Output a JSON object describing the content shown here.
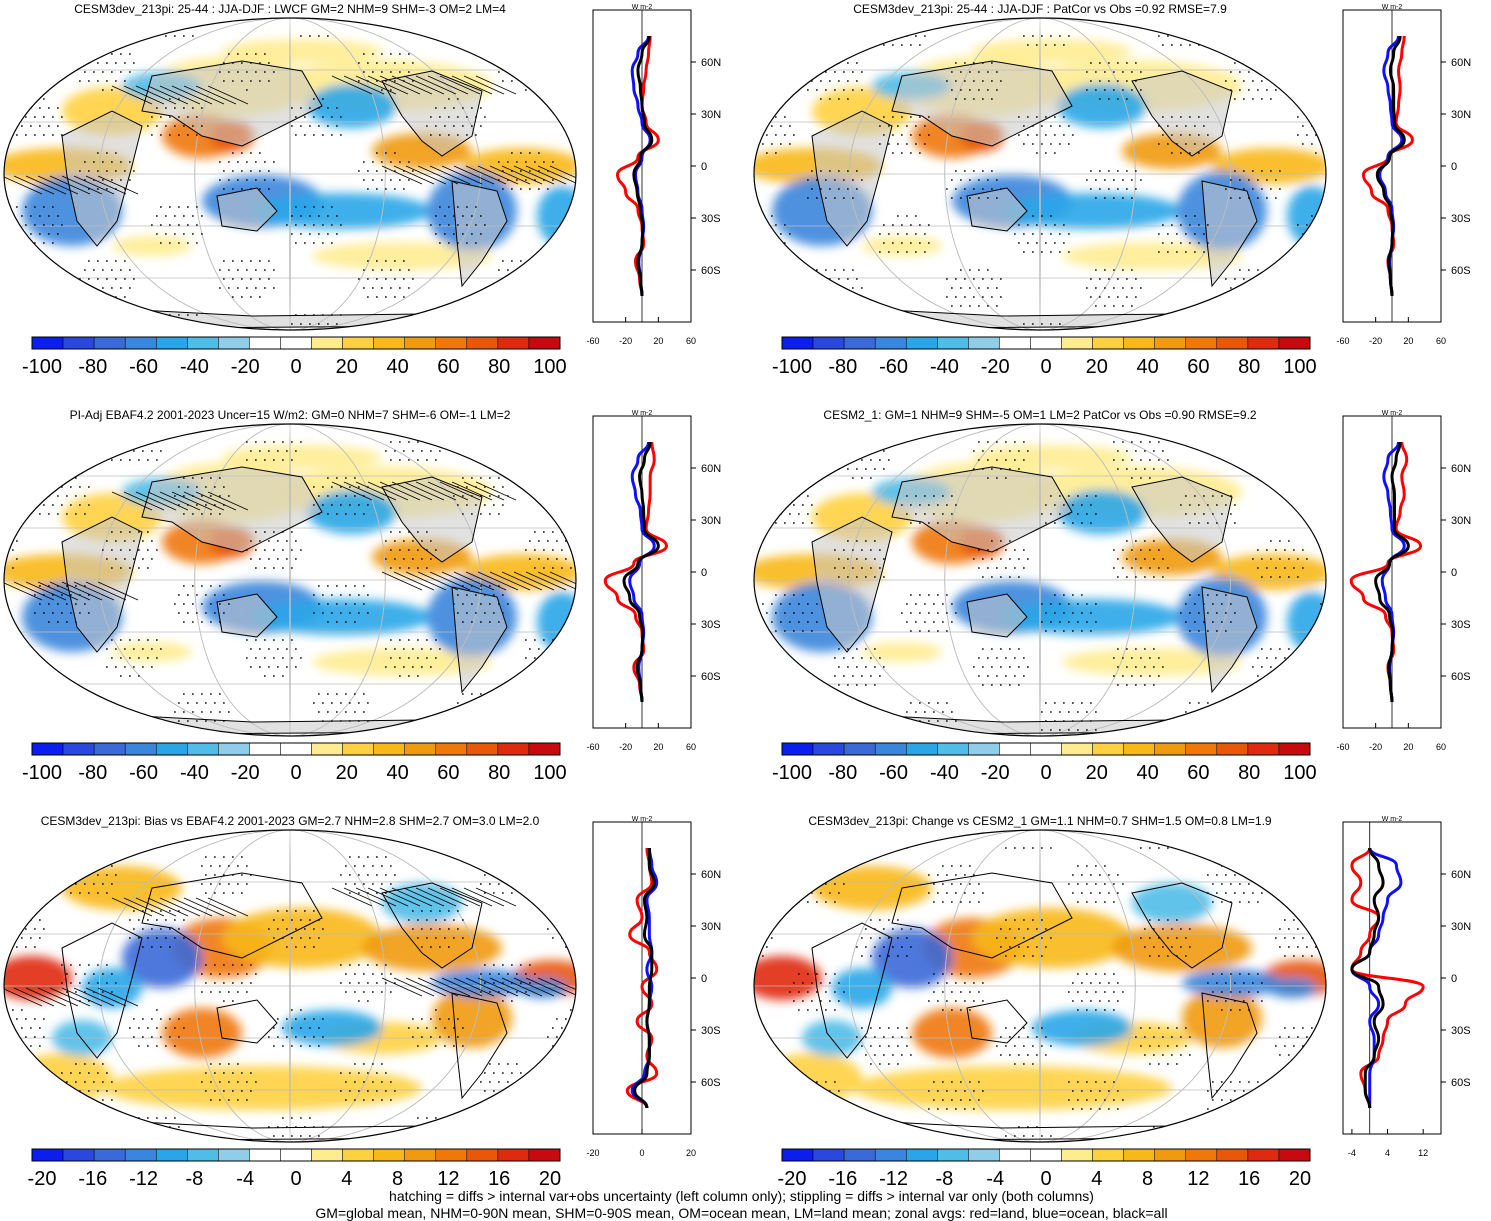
{
  "panels": [
    {
      "id": "p1",
      "title": "CESM3dev_213pi: 25-44 : JJA-DJF : LWCF GM=2 NHM=9 SHM=-3 OM=2 LM=4",
      "colorbar": {
        "ticks": [
          "-100",
          "-80",
          "-60",
          "-40",
          "-20",
          "0",
          "20",
          "40",
          "60",
          "80",
          "100"
        ]
      },
      "hatching": true
    },
    {
      "id": "p2",
      "title": "CESM3dev_213pi: 25-44 : JJA-DJF : PatCor vs Obs =0.92 RMSE=7.9",
      "colorbar": {
        "ticks": [
          "-100",
          "-80",
          "-60",
          "-40",
          "-20",
          "0",
          "20",
          "40",
          "60",
          "80",
          "100"
        ]
      },
      "hatching": false
    },
    {
      "id": "p3",
      "title": "PI-Adj EBAF4.2 2001-2023 Uncer=15 W/m2: GM=0 NHM=7 SHM=-6 OM=-1 LM=2",
      "colorbar": {
        "ticks": [
          "-100",
          "-80",
          "-60",
          "-40",
          "-20",
          "0",
          "20",
          "40",
          "60",
          "80",
          "100"
        ]
      },
      "hatching": true
    },
    {
      "id": "p4",
      "title": "CESM2_1: GM=1 NHM=9 SHM=-5 OM=1 LM=2 PatCor vs Obs =0.90 RMSE=9.2",
      "colorbar": {
        "ticks": [
          "-100",
          "-80",
          "-60",
          "-40",
          "-20",
          "0",
          "20",
          "40",
          "60",
          "80",
          "100"
        ]
      },
      "hatching": false
    },
    {
      "id": "p5",
      "title": "CESM3dev_213pi: Bias vs EBAF4.2 2001-2023 GM=2.7 NHM=2.8 SHM=2.7 OM=3.0 LM=2.0",
      "colorbar": {
        "ticks": [
          "-20",
          "-16",
          "-12",
          "-8",
          "-4",
          "0",
          "4",
          "8",
          "12",
          "16",
          "20"
        ]
      },
      "hatching": true
    },
    {
      "id": "p6",
      "title": "CESM3dev_213pi: Change vs CESM2_1 GM=1.1 NHM=0.7 SHM=1.5 OM=0.8 LM=1.9",
      "colorbar": {
        "ticks": [
          "-20",
          "-16",
          "-12",
          "-8",
          "-4",
          "0",
          "4",
          "8",
          "12",
          "16",
          "20"
        ]
      },
      "hatching": false
    }
  ],
  "colors": {
    "scale": [
      "#0a1ef0",
      "#2a48e0",
      "#3a6ad8",
      "#3a86dc",
      "#2aa6e8",
      "#50bde8",
      "#90cde8",
      "#ffffff",
      "#ffffff",
      "#ffec90",
      "#ffd040",
      "#f8b818",
      "#f09a10",
      "#f07808",
      "#e85808",
      "#e02a10",
      "#c80a10"
    ],
    "land": "#c8c8c8",
    "land_curve": "#ff0000",
    "ocean_curve": "#1010ff",
    "all_curve": "#000000"
  },
  "chart_data": [
    {
      "type": "heatmap",
      "panel": "p1",
      "zonal_mean": {
        "ylabel": "W m-2",
        "yticks": [
          "60N",
          "30N",
          "0",
          "30S",
          "60S"
        ],
        "xticks": [
          "-60",
          "-20",
          "20",
          "60"
        ],
        "xlim": [
          -60,
          60
        ],
        "lat": [
          75,
          65,
          55,
          45,
          35,
          25,
          15,
          5,
          -5,
          -15,
          -25,
          -35,
          -45,
          -55,
          -65,
          -75
        ],
        "series": [
          {
            "key": "land",
            "values": [
              10,
              8,
              5,
              2,
              0,
              5,
              20,
              -5,
              -30,
              -20,
              -5,
              0,
              2,
              -8,
              -3,
              0
            ]
          },
          {
            "key": "ocean",
            "values": [
              8,
              -5,
              -12,
              -10,
              -5,
              0,
              10,
              0,
              -8,
              -5,
              0,
              2,
              0,
              -4,
              -2,
              0
            ]
          },
          {
            "key": "all",
            "values": [
              9,
              0,
              -5,
              -2,
              0,
              3,
              12,
              -2,
              -10,
              -6,
              -2,
              1,
              0,
              -5,
              -2,
              0
            ]
          }
        ]
      }
    },
    {
      "type": "heatmap",
      "panel": "p2",
      "zonal_mean": {
        "ylabel": "W m-2",
        "yticks": [
          "60N",
          "30N",
          "0",
          "30S",
          "60S"
        ],
        "xticks": [
          "-60",
          "-20",
          "20",
          "60"
        ],
        "xlim": [
          -60,
          60
        ],
        "lat": [
          75,
          65,
          55,
          45,
          35,
          25,
          15,
          5,
          -5,
          -15,
          -25,
          -35,
          -45,
          -55,
          -65,
          -75
        ],
        "series": [
          {
            "key": "land",
            "values": [
              15,
              12,
              8,
              10,
              8,
              5,
              25,
              -5,
              -35,
              -25,
              -5,
              0,
              2,
              -5,
              -2,
              0
            ]
          },
          {
            "key": "ocean",
            "values": [
              8,
              -5,
              -10,
              -5,
              -2,
              0,
              12,
              -5,
              -15,
              -8,
              0,
              2,
              0,
              -3,
              -2,
              0
            ]
          },
          {
            "key": "all",
            "values": [
              10,
              2,
              -2,
              2,
              2,
              3,
              15,
              -3,
              -18,
              -10,
              -2,
              1,
              0,
              -4,
              -2,
              0
            ]
          }
        ]
      }
    },
    {
      "type": "heatmap",
      "panel": "p3",
      "zonal_mean": {
        "ylabel": "W m-2",
        "yticks": [
          "60N",
          "30N",
          "0",
          "30S",
          "60S"
        ],
        "xticks": [
          "-60",
          "-20",
          "20",
          "60"
        ],
        "xlim": [
          -60,
          60
        ],
        "lat": [
          75,
          65,
          55,
          45,
          35,
          25,
          15,
          5,
          -5,
          -15,
          -25,
          -35,
          -45,
          -55,
          -65,
          -75
        ],
        "series": [
          {
            "key": "land",
            "values": [
              12,
              15,
              10,
              10,
              8,
              5,
              30,
              -10,
              -45,
              -30,
              -8,
              0,
              2,
              -10,
              -3,
              0
            ]
          },
          {
            "key": "ocean",
            "values": [
              8,
              -5,
              -12,
              -8,
              -2,
              0,
              15,
              -3,
              -15,
              -10,
              0,
              2,
              0,
              -4,
              -2,
              0
            ]
          },
          {
            "key": "all",
            "values": [
              10,
              3,
              -3,
              0,
              2,
              3,
              20,
              -5,
              -22,
              -15,
              -3,
              1,
              0,
              -6,
              -2,
              0
            ]
          }
        ]
      }
    },
    {
      "type": "heatmap",
      "panel": "p4",
      "zonal_mean": {
        "ylabel": "W m-2",
        "yticks": [
          "60N",
          "30N",
          "0",
          "30S",
          "60S"
        ],
        "xticks": [
          "-60",
          "-20",
          "20",
          "60"
        ],
        "xlim": [
          -60,
          60
        ],
        "lat": [
          75,
          65,
          55,
          45,
          35,
          25,
          15,
          5,
          -5,
          -15,
          -25,
          -35,
          -45,
          -55,
          -65,
          -75
        ],
        "series": [
          {
            "key": "land",
            "values": [
              12,
              18,
              12,
              15,
              10,
              5,
              35,
              -5,
              -50,
              -35,
              -8,
              0,
              2,
              -5,
              -2,
              0
            ]
          },
          {
            "key": "ocean",
            "values": [
              8,
              -5,
              -10,
              -5,
              -2,
              0,
              15,
              -3,
              -12,
              -8,
              0,
              2,
              0,
              -3,
              -2,
              0
            ]
          },
          {
            "key": "all",
            "values": [
              10,
              5,
              0,
              3,
              3,
              3,
              20,
              -3,
              -20,
              -15,
              -3,
              1,
              0,
              -4,
              -2,
              0
            ]
          }
        ]
      }
    },
    {
      "type": "heatmap",
      "panel": "p5",
      "zonal_mean": {
        "ylabel": "W m-2",
        "yticks": [
          "60N",
          "30N",
          "0",
          "30S",
          "60S"
        ],
        "xticks": [
          "-20",
          "0",
          "20"
        ],
        "xlim": [
          -20,
          20
        ],
        "lat": [
          75,
          65,
          55,
          45,
          35,
          25,
          15,
          5,
          -5,
          -15,
          -25,
          -35,
          -45,
          -55,
          -65,
          -75
        ],
        "series": [
          {
            "key": "land",
            "values": [
              2,
              3,
              4,
              -2,
              0,
              -5,
              3,
              6,
              0,
              4,
              -2,
              4,
              2,
              6,
              -6,
              2
            ]
          },
          {
            "key": "ocean",
            "values": [
              3,
              4,
              6,
              2,
              3,
              3,
              4,
              2,
              4,
              3,
              2,
              3,
              3,
              1,
              -4,
              2
            ]
          },
          {
            "key": "all",
            "values": [
              3,
              3,
              5,
              1,
              2,
              1,
              4,
              4,
              3,
              3,
              2,
              3,
              3,
              2,
              -3,
              2
            ]
          }
        ]
      }
    },
    {
      "type": "heatmap",
      "panel": "p6",
      "zonal_mean": {
        "ylabel": "W m-2",
        "yticks": [
          "60N",
          "30N",
          "0",
          "30S",
          "60S"
        ],
        "xticks": [
          "-4",
          "4",
          "12"
        ],
        "xlim": [
          -6,
          16
        ],
        "lat": [
          75,
          65,
          55,
          45,
          35,
          25,
          15,
          5,
          -5,
          -15,
          -25,
          -35,
          -45,
          -55,
          -65,
          -75
        ],
        "series": [
          {
            "key": "land",
            "values": [
              0,
              -4,
              -2,
              -4,
              2,
              0,
              -2,
              -4,
              12,
              8,
              4,
              3,
              2,
              -2,
              -1,
              0
            ]
          },
          {
            "key": "ocean",
            "values": [
              0,
              6,
              7,
              4,
              3,
              2,
              0,
              -4,
              0,
              2,
              0,
              1,
              1,
              0,
              0,
              0
            ]
          },
          {
            "key": "all",
            "values": [
              0,
              2,
              3,
              1,
              2,
              1,
              0,
              -4,
              2,
              3,
              1,
              2,
              1,
              -1,
              -1,
              0
            ]
          }
        ]
      }
    }
  ],
  "footer": {
    "line1": "hatching = diffs > internal var+obs uncertainty (left column only); stippling = diffs > internal var only (both columns)",
    "line2": "GM=global mean, NHM=0-90N mean, SHM=0-90S mean, OM=ocean mean, LM=land mean; zonal avgs: red=land, blue=ocean, black=all"
  }
}
